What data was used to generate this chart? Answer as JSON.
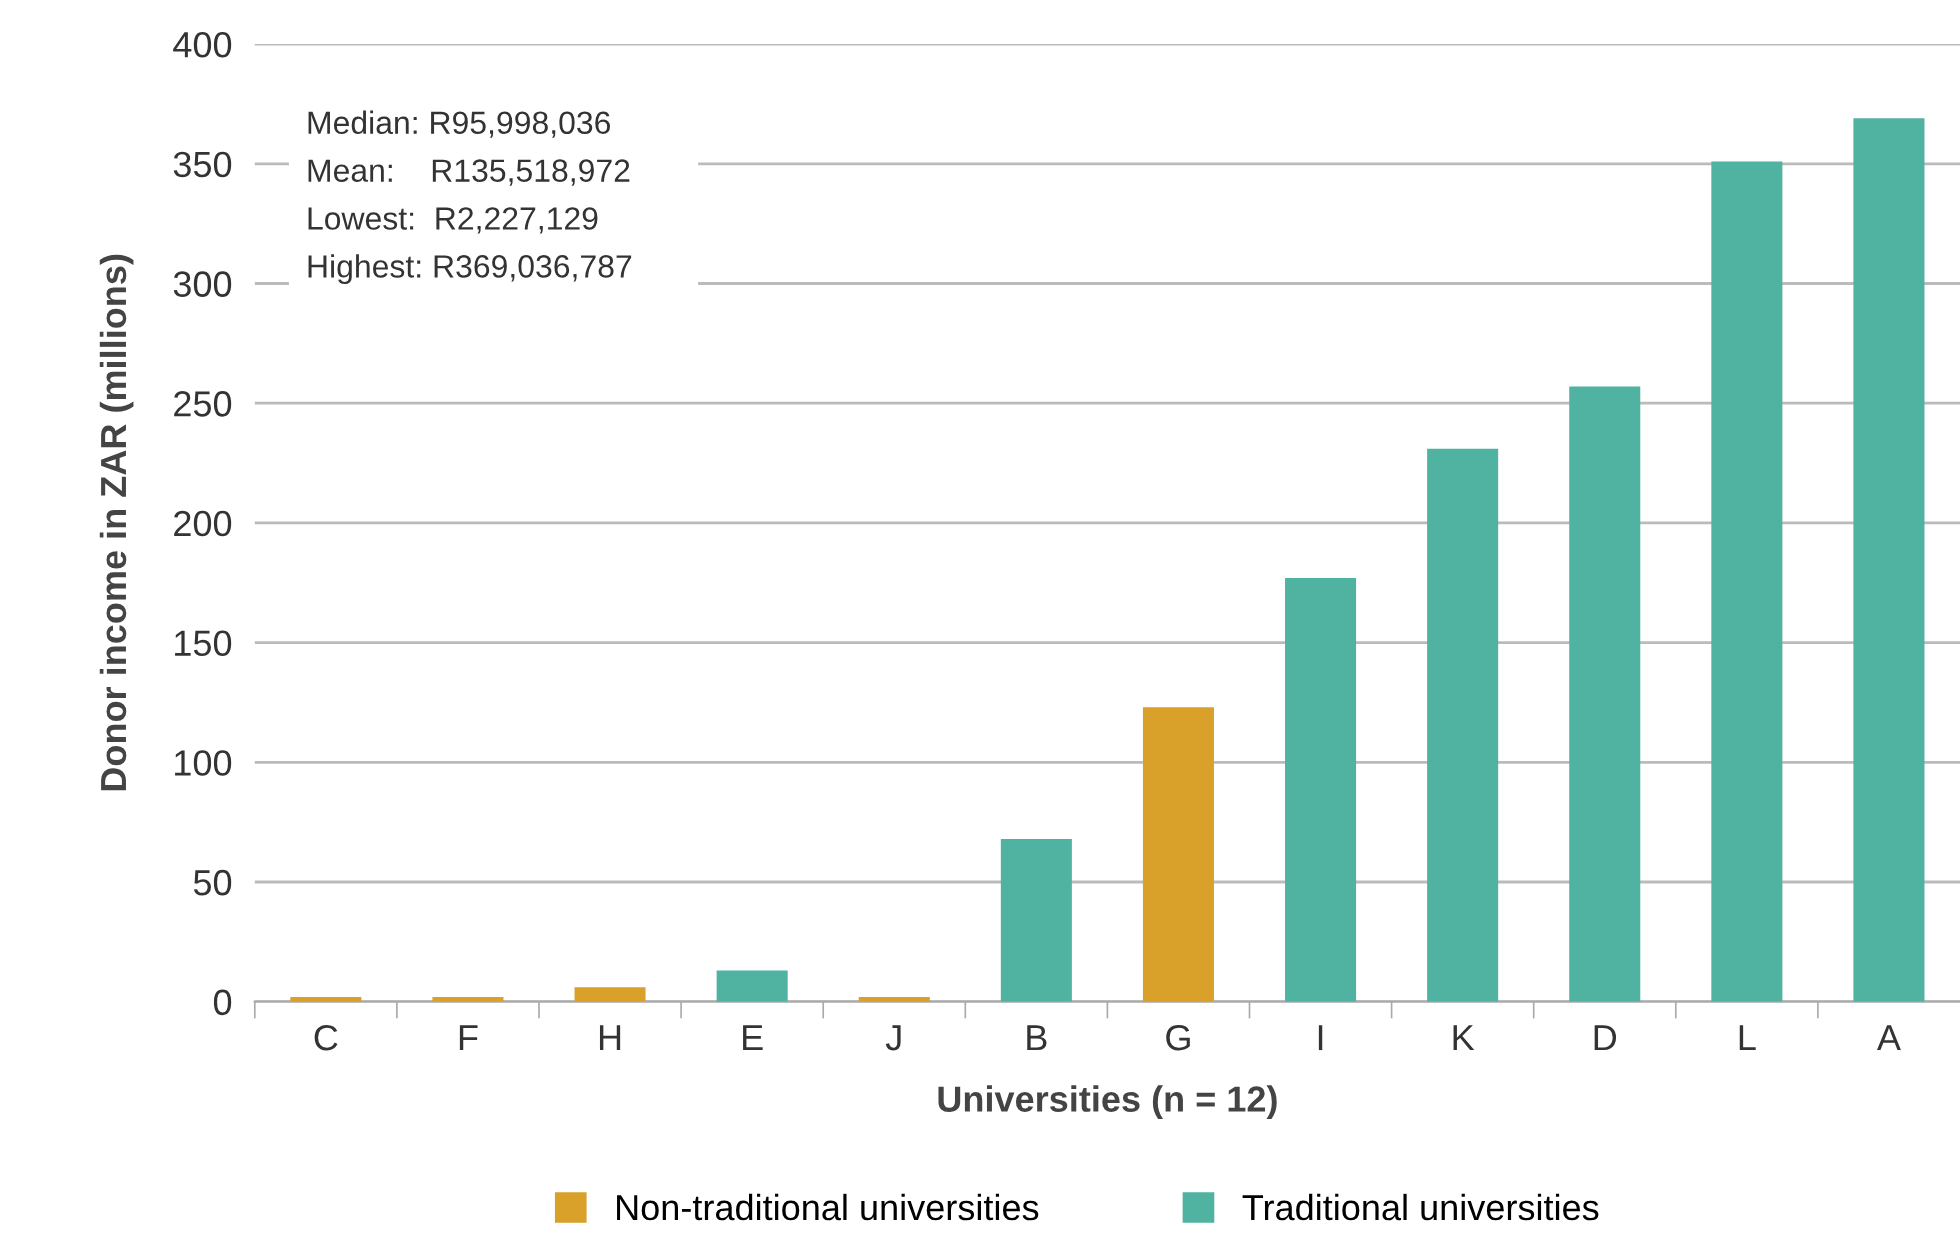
{
  "chart_data": {
    "type": "bar",
    "xlabel": "Universities (n = 12)",
    "ylabel": "Donor income in ZAR (millions)",
    "categories": [
      "C",
      "F",
      "H",
      "E",
      "J",
      "B",
      "G",
      "I",
      "K",
      "D",
      "L",
      "A"
    ],
    "series": [
      {
        "name": "Non-traditional universities",
        "color": "#d9a12a",
        "values": [
          2,
          2,
          6,
          null,
          2,
          null,
          123,
          null,
          null,
          null,
          null,
          null
        ]
      },
      {
        "name": "Traditional universities",
        "color": "#50b2a0",
        "values": [
          null,
          null,
          null,
          13,
          null,
          68,
          null,
          177,
          231,
          257,
          351,
          369
        ]
      }
    ],
    "ylim": [
      0,
      400
    ],
    "yticks": [
      0,
      50,
      100,
      150,
      200,
      250,
      300,
      350,
      400
    ],
    "grid": "y",
    "legend": "bottom",
    "annotations": [
      "Median: R95,998,036",
      "Mean:    R135,518,972",
      "Lowest:  R2,227,129",
      "Highest: R369,036,787"
    ]
  }
}
